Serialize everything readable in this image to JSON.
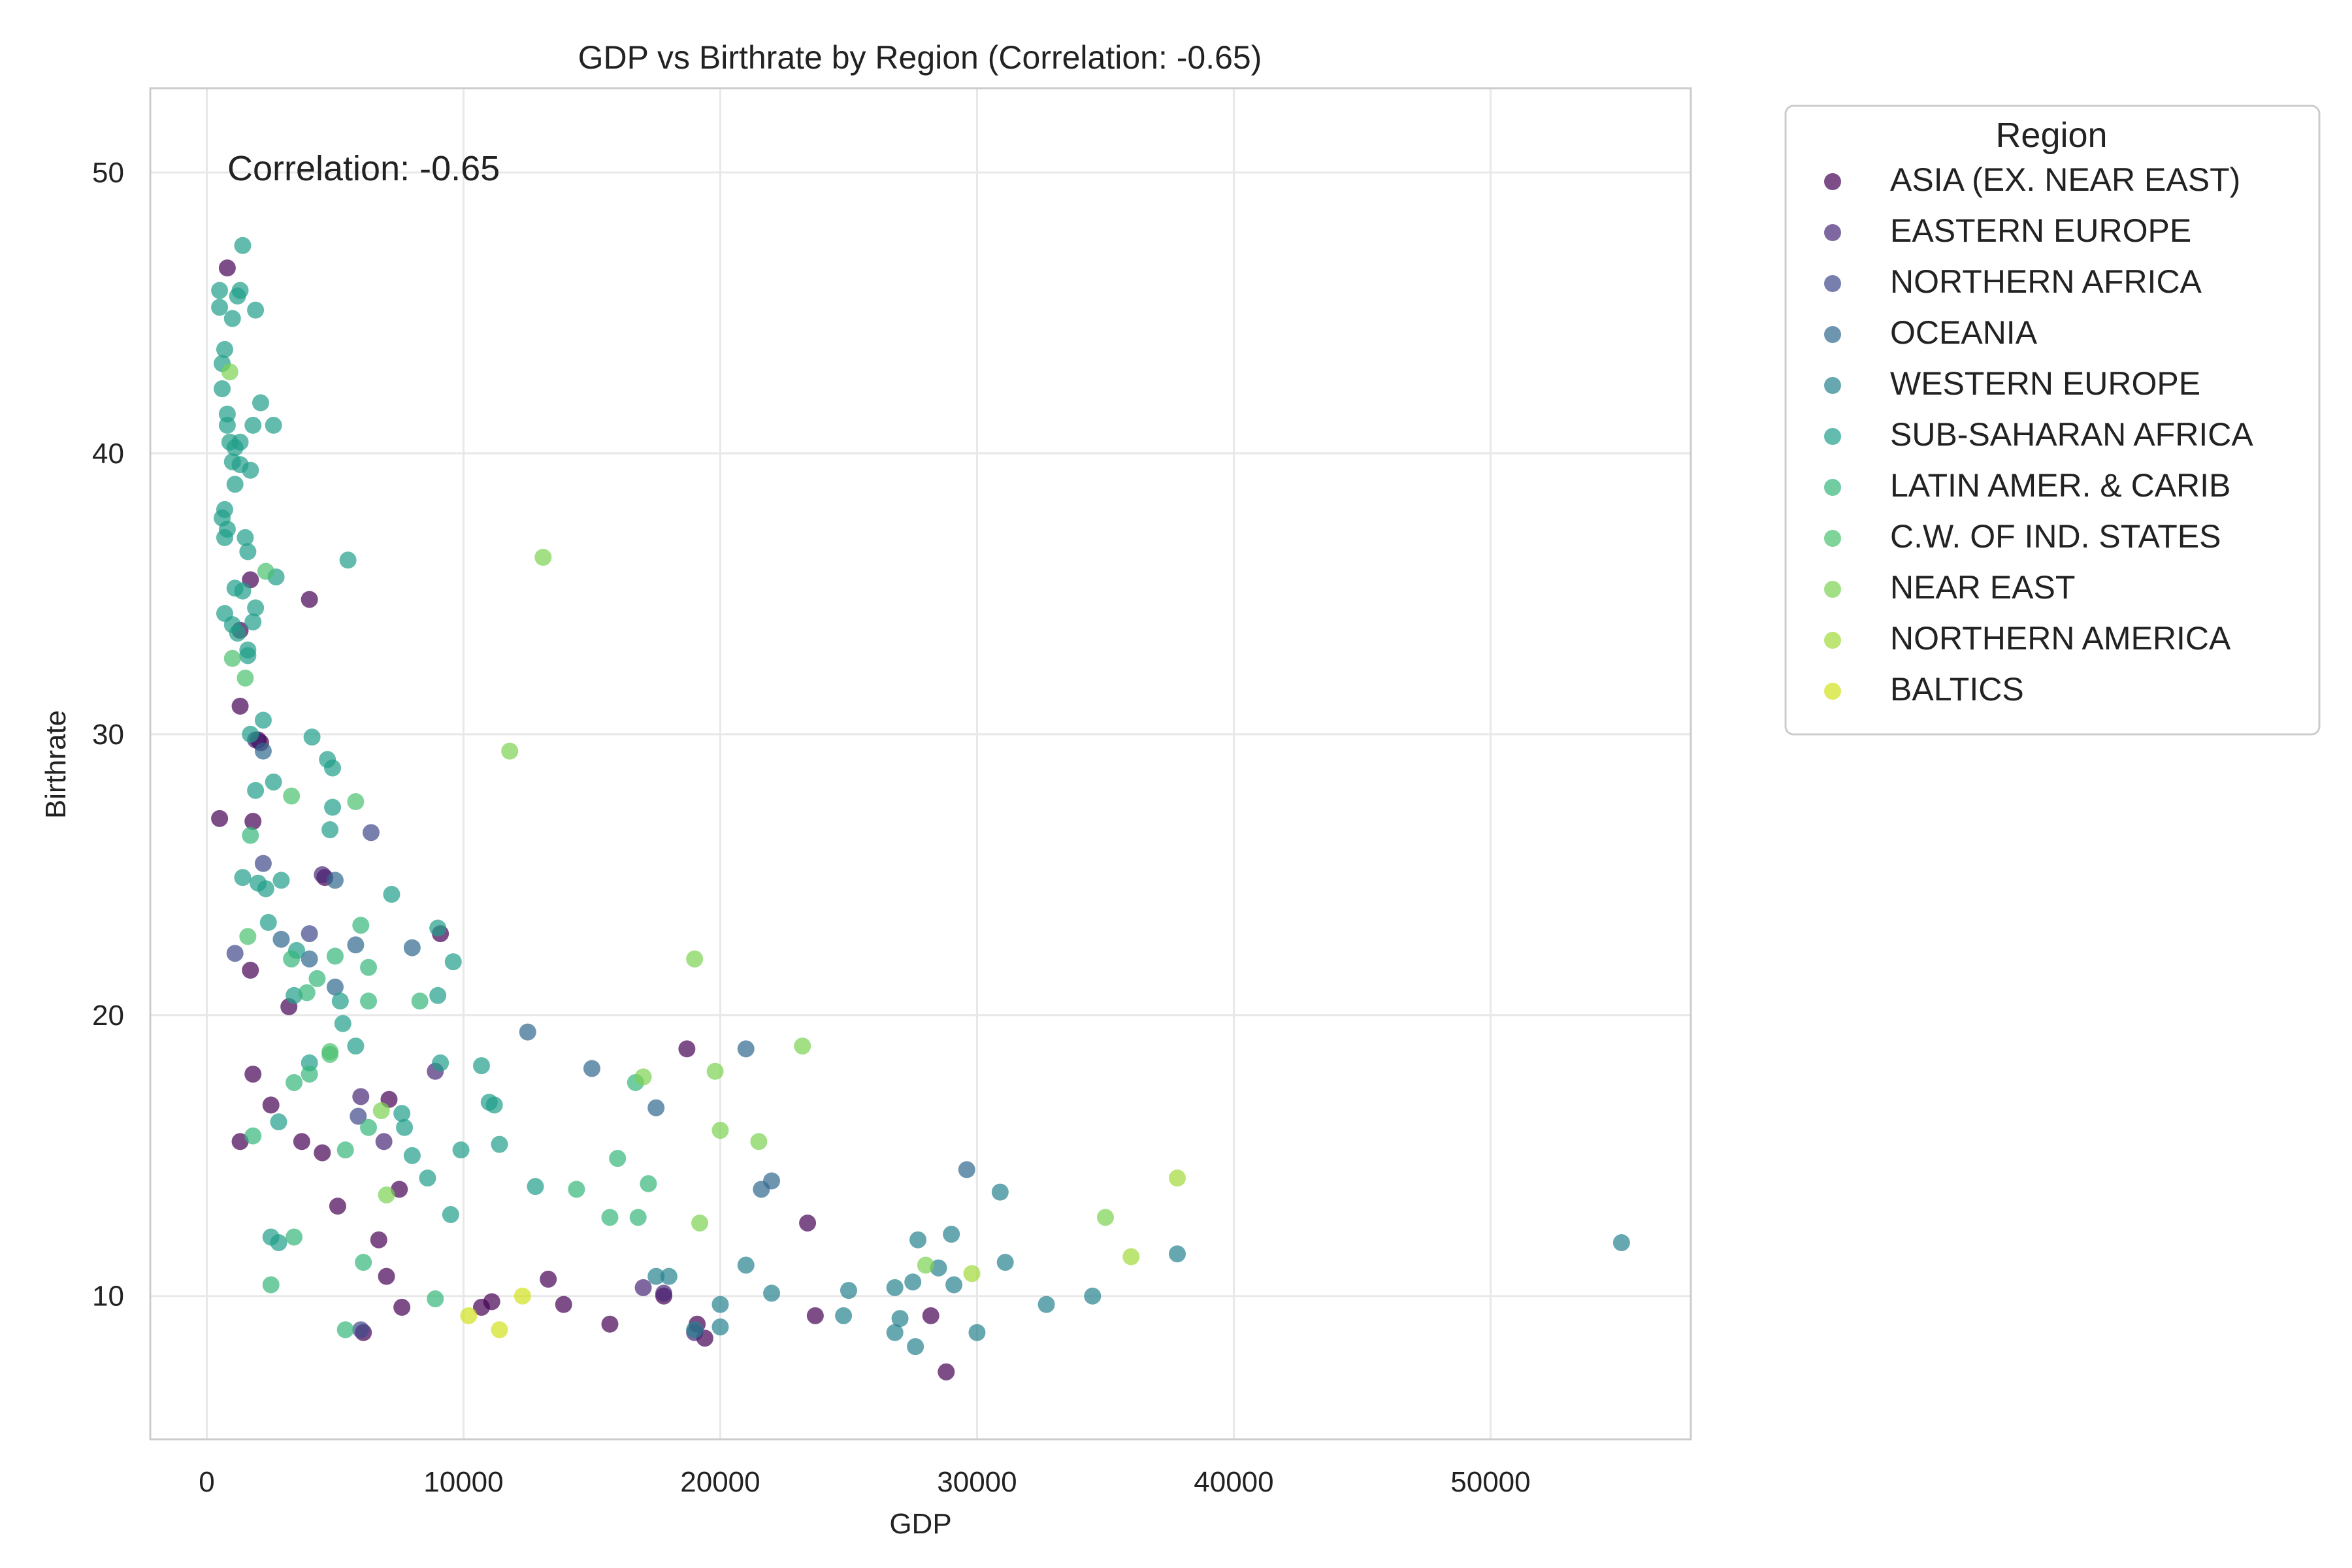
{
  "chart_data": {
    "type": "scatter",
    "title": "GDP vs Birthrate by Region (Correlation: -0.65)",
    "xlabel": "GDP",
    "ylabel": "Birthrate",
    "annotation": "Correlation: -0.65",
    "xlim": [
      -2200,
      57800
    ],
    "ylim": [
      4.9,
      53.0
    ],
    "xticks": [
      0,
      10000,
      20000,
      30000,
      40000,
      50000
    ],
    "xtick_labels": [
      "0",
      "10000",
      "20000",
      "30000",
      "40000",
      "50000"
    ],
    "yticks": [
      10,
      20,
      30,
      40,
      50
    ],
    "ytick_labels": [
      "10",
      "20",
      "30",
      "40",
      "50"
    ],
    "grid": true,
    "legend": {
      "title": "Region",
      "placement": "outside-right"
    },
    "series": [
      {
        "name": "ASIA (EX. NEAR EAST)",
        "color": "#440154",
        "points": [
          [
            800,
            46.6
          ],
          [
            500,
            27.0
          ],
          [
            1300,
            31.0
          ],
          [
            1300,
            33.7
          ],
          [
            1700,
            35.5
          ],
          [
            1700,
            21.6
          ],
          [
            1800,
            26.9
          ],
          [
            2000,
            29.8
          ],
          [
            2100,
            29.7
          ],
          [
            1800,
            17.9
          ],
          [
            1300,
            15.5
          ],
          [
            2500,
            16.8
          ],
          [
            3200,
            20.3
          ],
          [
            3700,
            15.5
          ],
          [
            4500,
            15.1
          ],
          [
            4000,
            34.8
          ],
          [
            4600,
            24.9
          ],
          [
            5100,
            13.2
          ],
          [
            6700,
            12.0
          ],
          [
            6100,
            8.7
          ],
          [
            7000,
            10.7
          ],
          [
            7100,
            17.0
          ],
          [
            7500,
            13.8
          ],
          [
            7600,
            9.6
          ],
          [
            9100,
            22.9
          ],
          [
            10700,
            9.6
          ],
          [
            11100,
            9.8
          ],
          [
            13300,
            10.6
          ],
          [
            13900,
            9.7
          ],
          [
            15700,
            9.0
          ],
          [
            17800,
            10.0
          ],
          [
            18700,
            18.8
          ],
          [
            19100,
            9.0
          ],
          [
            19400,
            8.5
          ],
          [
            23400,
            12.6
          ],
          [
            23700,
            9.3
          ],
          [
            28200,
            9.3
          ],
          [
            28800,
            7.3
          ]
        ]
      },
      {
        "name": "EASTERN EUROPE",
        "color": "#482878",
        "points": [
          [
            1900,
            29.8
          ],
          [
            4500,
            25.0
          ],
          [
            6000,
            17.1
          ],
          [
            6900,
            15.5
          ],
          [
            8900,
            18.0
          ],
          [
            17000,
            10.3
          ],
          [
            19000,
            8.7
          ],
          [
            17800,
            10.1
          ]
        ]
      },
      {
        "name": "NORTHERN AFRICA",
        "color": "#3e4989",
        "points": [
          [
            1100,
            22.2
          ],
          [
            2200,
            25.4
          ],
          [
            4000,
            22.9
          ],
          [
            6400,
            26.5
          ],
          [
            5900,
            16.4
          ],
          [
            6000,
            8.8
          ]
        ]
      },
      {
        "name": "OCEANIA",
        "color": "#31688e",
        "points": [
          [
            2200,
            29.4
          ],
          [
            4000,
            22.0
          ],
          [
            5000,
            21.0
          ],
          [
            2900,
            22.7
          ],
          [
            5000,
            24.8
          ],
          [
            5800,
            22.5
          ],
          [
            8000,
            22.4
          ],
          [
            12500,
            19.4
          ],
          [
            15000,
            18.1
          ],
          [
            17500,
            16.7
          ],
          [
            21000,
            18.8
          ],
          [
            21600,
            13.8
          ],
          [
            22000,
            14.1
          ],
          [
            29600,
            14.5
          ]
        ]
      },
      {
        "name": "WESTERN EUROPE",
        "color": "#26828e",
        "points": [
          [
            17500,
            10.7
          ],
          [
            18000,
            10.7
          ],
          [
            19000,
            8.8
          ],
          [
            20000,
            8.9
          ],
          [
            20000,
            9.7
          ],
          [
            21000,
            11.1
          ],
          [
            22000,
            10.1
          ],
          [
            24800,
            9.3
          ],
          [
            25000,
            10.2
          ],
          [
            26800,
            10.3
          ],
          [
            26800,
            8.7
          ],
          [
            27000,
            9.2
          ],
          [
            27500,
            10.5
          ],
          [
            27600,
            8.2
          ],
          [
            27700,
            12.0
          ],
          [
            28500,
            11.0
          ],
          [
            29000,
            12.2
          ],
          [
            29100,
            10.4
          ],
          [
            30000,
            8.7
          ],
          [
            30900,
            13.7
          ],
          [
            31100,
            11.2
          ],
          [
            32700,
            9.7
          ],
          [
            34500,
            10.0
          ],
          [
            37800,
            11.5
          ],
          [
            55100,
            11.9
          ]
        ]
      },
      {
        "name": "SUB-SAHARAN AFRICA",
        "color": "#1f9e89",
        "points": [
          [
            500,
            45.8
          ],
          [
            500,
            45.2
          ],
          [
            600,
            43.2
          ],
          [
            700,
            43.7
          ],
          [
            600,
            42.3
          ],
          [
            800,
            41.4
          ],
          [
            800,
            41.0
          ],
          [
            900,
            40.4
          ],
          [
            1000,
            39.7
          ],
          [
            1000,
            44.8
          ],
          [
            1100,
            38.9
          ],
          [
            1100,
            40.2
          ],
          [
            1200,
            45.6
          ],
          [
            1300,
            45.8
          ],
          [
            1300,
            40.4
          ],
          [
            1400,
            47.4
          ],
          [
            1300,
            39.6
          ],
          [
            1700,
            39.4
          ],
          [
            1800,
            41.0
          ],
          [
            1900,
            45.1
          ],
          [
            2100,
            41.8
          ],
          [
            2600,
            41.0
          ],
          [
            600,
            37.7
          ],
          [
            700,
            37.0
          ],
          [
            700,
            38.0
          ],
          [
            800,
            37.3
          ],
          [
            1500,
            37.0
          ],
          [
            1600,
            36.5
          ],
          [
            1100,
            35.2
          ],
          [
            1400,
            35.1
          ],
          [
            1600,
            33.0
          ],
          [
            1600,
            32.8
          ],
          [
            1900,
            34.5
          ],
          [
            2700,
            35.6
          ],
          [
            5500,
            36.2
          ],
          [
            700,
            34.3
          ],
          [
            1000,
            33.9
          ],
          [
            1200,
            33.6
          ],
          [
            1800,
            34.0
          ],
          [
            1700,
            30.0
          ],
          [
            2200,
            30.5
          ],
          [
            1900,
            28.0
          ],
          [
            2600,
            28.3
          ],
          [
            4100,
            29.9
          ],
          [
            4700,
            29.1
          ],
          [
            4900,
            28.8
          ],
          [
            4900,
            27.4
          ],
          [
            4800,
            26.6
          ],
          [
            1400,
            24.9
          ],
          [
            2000,
            24.7
          ],
          [
            2300,
            24.5
          ],
          [
            2900,
            24.8
          ],
          [
            2400,
            23.3
          ],
          [
            3500,
            22.3
          ],
          [
            3400,
            20.7
          ],
          [
            5200,
            20.5
          ],
          [
            7200,
            24.3
          ],
          [
            9000,
            23.1
          ],
          [
            9600,
            21.9
          ],
          [
            9000,
            20.7
          ],
          [
            5300,
            19.7
          ],
          [
            5800,
            18.9
          ],
          [
            4000,
            18.3
          ],
          [
            9100,
            18.3
          ],
          [
            10700,
            18.2
          ],
          [
            2800,
            16.2
          ],
          [
            7600,
            16.5
          ],
          [
            7700,
            16.0
          ],
          [
            8600,
            14.2
          ],
          [
            9900,
            15.2
          ],
          [
            8000,
            15.0
          ],
          [
            11000,
            16.9
          ],
          [
            11200,
            16.8
          ],
          [
            11400,
            15.4
          ],
          [
            2500,
            12.1
          ],
          [
            2800,
            11.9
          ],
          [
            9500,
            12.9
          ],
          [
            12800,
            13.9
          ]
        ]
      },
      {
        "name": "LATIN AMER. & CARIB",
        "color": "#35b779",
        "points": [
          [
            1700,
            26.4
          ],
          [
            3300,
            22.0
          ],
          [
            6000,
            23.2
          ],
          [
            6300,
            21.7
          ],
          [
            5000,
            22.1
          ],
          [
            3900,
            20.8
          ],
          [
            4300,
            21.3
          ],
          [
            6300,
            20.5
          ],
          [
            8300,
            20.5
          ],
          [
            4000,
            17.9
          ],
          [
            3400,
            17.6
          ],
          [
            6300,
            16.0
          ],
          [
            5400,
            15.2
          ],
          [
            1800,
            15.7
          ],
          [
            2500,
            10.4
          ],
          [
            3400,
            12.1
          ],
          [
            6100,
            11.2
          ],
          [
            5400,
            8.8
          ],
          [
            8900,
            9.9
          ],
          [
            14400,
            13.8
          ],
          [
            15700,
            12.8
          ],
          [
            16000,
            14.9
          ],
          [
            16800,
            12.8
          ],
          [
            16700,
            17.6
          ],
          [
            17200,
            14.0
          ]
        ]
      },
      {
        "name": "C.W. OF IND. STATES",
        "color": "#4ac16d",
        "points": [
          [
            1000,
            32.7
          ],
          [
            1500,
            32.0
          ],
          [
            1600,
            22.8
          ],
          [
            3300,
            27.8
          ],
          [
            5800,
            27.6
          ],
          [
            4800,
            18.6
          ],
          [
            4800,
            18.7
          ],
          [
            2300,
            35.8
          ]
        ]
      },
      {
        "name": "NEAR EAST",
        "color": "#7ad151",
        "points": [
          [
            900,
            42.9
          ],
          [
            13100,
            36.3
          ],
          [
            11800,
            29.4
          ],
          [
            19000,
            22.0
          ],
          [
            17000,
            17.8
          ],
          [
            19800,
            18.0
          ],
          [
            23200,
            18.9
          ],
          [
            20000,
            15.9
          ],
          [
            21500,
            15.5
          ],
          [
            19200,
            12.6
          ],
          [
            28000,
            11.1
          ],
          [
            35000,
            12.8
          ],
          [
            6800,
            16.6
          ],
          [
            7000,
            13.6
          ]
        ]
      },
      {
        "name": "NORTHERN AMERICA",
        "color": "#a0da39",
        "points": [
          [
            29800,
            10.8
          ],
          [
            36000,
            11.4
          ],
          [
            37800,
            14.2
          ]
        ]
      },
      {
        "name": "BALTICS",
        "color": "#d0e11c",
        "points": [
          [
            10200,
            9.3
          ],
          [
            11400,
            8.8
          ],
          [
            12300,
            10.0
          ]
        ]
      }
    ]
  }
}
